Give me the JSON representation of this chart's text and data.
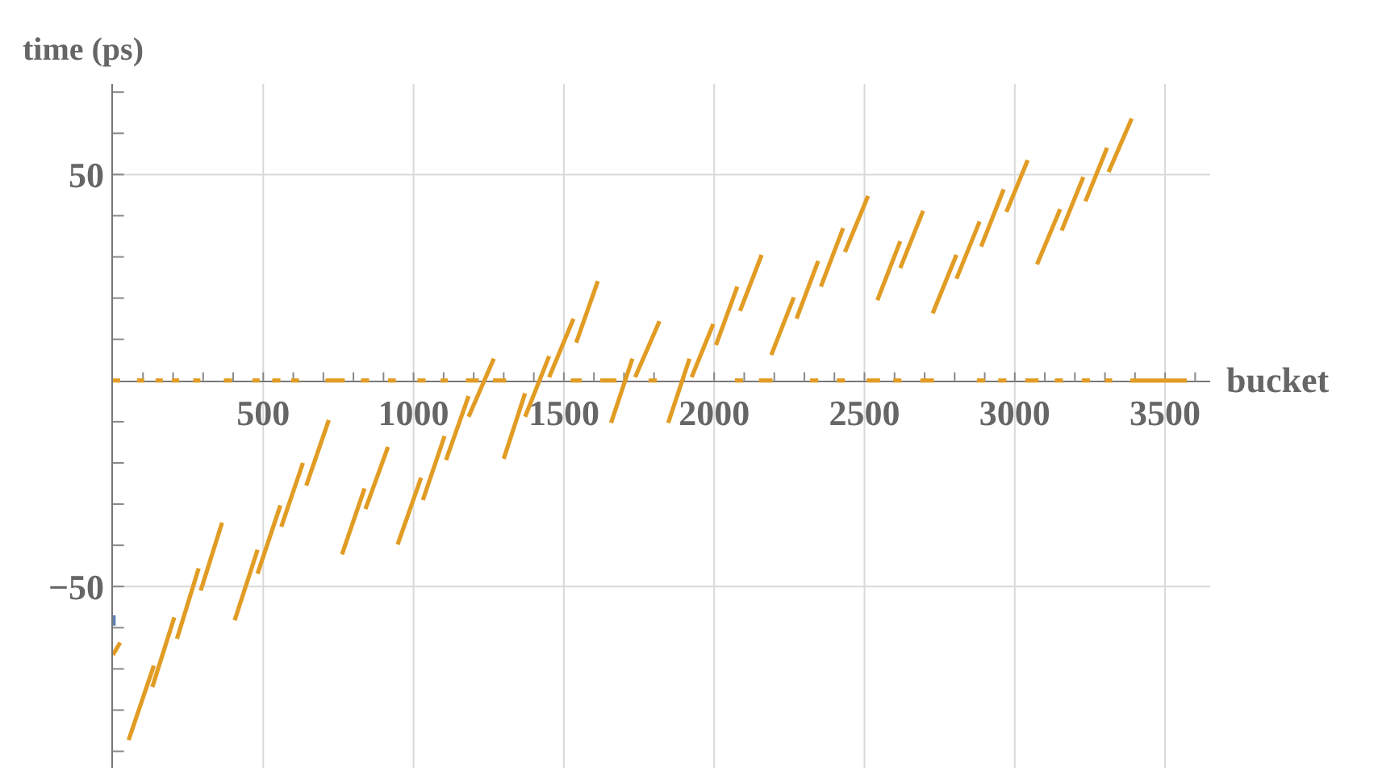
{
  "chart_data": {
    "type": "line",
    "xlabel": "bucket",
    "ylabel": "time (ps)",
    "xlim": [
      0,
      3650
    ],
    "ylim": [
      -94,
      72
    ],
    "xticks": [
      {
        "value": 100,
        "label": null
      },
      {
        "value": 200,
        "label": null
      },
      {
        "value": 300,
        "label": null
      },
      {
        "value": 400,
        "label": null
      },
      500,
      {
        "value": 600,
        "label": null
      },
      {
        "value": 700,
        "label": null
      },
      {
        "value": 800,
        "label": null
      },
      {
        "value": 900,
        "label": null
      },
      1000,
      {
        "value": 1100,
        "label": null
      },
      {
        "value": 1200,
        "label": null
      },
      {
        "value": 1300,
        "label": null
      },
      {
        "value": 1400,
        "label": null
      },
      1500,
      {
        "value": 1600,
        "label": null
      },
      {
        "value": 1700,
        "label": null
      },
      {
        "value": 1800,
        "label": null
      },
      {
        "value": 1900,
        "label": null
      },
      2000,
      {
        "value": 2100,
        "label": null
      },
      {
        "value": 2200,
        "label": null
      },
      {
        "value": 2300,
        "label": null
      },
      {
        "value": 2400,
        "label": null
      },
      2500,
      {
        "value": 2600,
        "label": null
      },
      {
        "value": 2700,
        "label": null
      },
      {
        "value": 2800,
        "label": null
      },
      {
        "value": 2900,
        "label": null
      },
      3000,
      {
        "value": 3100,
        "label": null
      },
      {
        "value": 3200,
        "label": null
      },
      {
        "value": 3300,
        "label": null
      },
      {
        "value": 3400,
        "label": null
      },
      3500,
      {
        "value": 3600,
        "label": null
      }
    ],
    "yticks": [
      {
        "value": -90,
        "label": null
      },
      {
        "value": -80,
        "label": null
      },
      {
        "value": -70,
        "label": null
      },
      {
        "value": -60,
        "label": null
      },
      {
        "value": -50,
        "label": "−50"
      },
      {
        "value": -40,
        "label": null
      },
      {
        "value": -30,
        "label": null
      },
      {
        "value": -20,
        "label": null
      },
      {
        "value": -10,
        "label": null
      },
      {
        "value": 10,
        "label": null
      },
      {
        "value": 20,
        "label": null
      },
      {
        "value": 30,
        "label": null
      },
      {
        "value": 40,
        "label": null
      },
      50,
      {
        "value": 60,
        "label": null
      },
      {
        "value": 70,
        "label": null
      }
    ],
    "grid": true,
    "marker": "none",
    "line_style": "solid",
    "series": [
      {
        "color": "#5e81b5",
        "x": [
          2,
          2
        ],
        "values": [
          -57,
          -59.5
        ]
      },
      {
        "color": "#e19c24",
        "x": [
          0,
          24,
          null,
          52,
          136,
          null,
          131,
          204,
          null,
          213,
          285,
          null,
          292,
          363,
          null,
          405,
          481,
          null,
          481,
          557,
          null,
          560,
          632,
          null,
          643,
          718,
          null,
          762,
          837,
          null,
          840,
          915,
          null,
          947,
          1025,
          null,
          1031,
          1103,
          null,
          1108,
          1183,
          null,
          1183,
          1267,
          null,
          1300,
          1371,
          null,
          1371,
          1451,
          null,
          1451,
          1532,
          null,
          1541,
          1613,
          null,
          1657,
          1728,
          null,
          1737,
          1818,
          null,
          1847,
          1918,
          null,
          1925,
          1997,
          null,
          2006,
          2077,
          null,
          2086,
          2158,
          null,
          2190,
          2265,
          null,
          2274,
          2346,
          null,
          2355,
          2429,
          null,
          2435,
          2512,
          null,
          2543,
          2619,
          null,
          2619,
          2695,
          null,
          2727,
          2806,
          null,
          2806,
          2883,
          null,
          2888,
          2963,
          null,
          2972,
          3043,
          null,
          3074,
          3151,
          null,
          3156,
          3228,
          null,
          3235,
          3307,
          null,
          3312,
          3389
        ],
        "values": [
          -66.6,
          -63.6,
          null,
          -87.3,
          -69.2,
          null,
          -74.4,
          -57.5,
          null,
          -62.7,
          -45.6,
          null,
          -51,
          -34.5,
          null,
          -58.2,
          -41.1,
          null,
          -46.9,
          -30.3,
          null,
          -35.5,
          -20,
          null,
          -25.5,
          -9.6,
          null,
          -42.2,
          -26.2,
          null,
          -31.2,
          -16.1,
          null,
          -39.8,
          -23.6,
          null,
          -29,
          -13.5,
          null,
          -19.3,
          -3.8,
          null,
          -8.8,
          5.3,
          null,
          -19,
          -3.1,
          null,
          -8.8,
          5.9,
          null,
          0.8,
          15,
          null,
          9.2,
          24.1,
          null,
          -10.3,
          5.3,
          null,
          0.8,
          14.4,
          null,
          -10.3,
          5.3,
          null,
          0.8,
          13.7,
          null,
          8.6,
          22.8,
          null,
          16.9,
          30.5,
          null,
          6.2,
          20.2,
          null,
          15,
          29,
          null,
          22.8,
          37,
          null,
          31.2,
          44.8,
          null,
          19.5,
          33.8,
          null,
          27.3,
          41.2,
          null,
          16.3,
          30.5,
          null,
          24.7,
          38.6,
          null,
          32.5,
          46.4,
          null,
          40.9,
          53.5,
          null,
          28.2,
          41.6,
          null,
          36.4,
          49.4,
          null,
          43.5,
          56.5,
          null,
          50.6,
          63.6
        ]
      },
      {
        "color": "#e19c24",
        "x": [
          0,
          24,
          null,
          80,
          104,
          null,
          142,
          166,
          null,
          196,
          220,
          null,
          267,
          291,
          null,
          369,
          396,
          null,
          464,
          488,
          null,
          530,
          557,
          null,
          593,
          619,
          null,
          707,
          771,
          null,
          825,
          852,
          null,
          915,
          941,
          null,
          1013,
          1040,
          null,
          1090,
          1114,
          null,
          1174,
          1217,
          null,
          1264,
          1308,
          null,
          1523,
          1559,
          null,
          1621,
          1675,
          null,
          1782,
          1809,
          null,
          2069,
          2096,
          null,
          2149,
          2194,
          null,
          2319,
          2346,
          null,
          2408,
          2435,
          null,
          2507,
          2552,
          null,
          2596,
          2623,
          null,
          2686,
          2731,
          null,
          2874,
          2901,
          null,
          2945,
          2972,
          null,
          3035,
          3079,
          null,
          3133,
          3160,
          null,
          3223,
          3250,
          null,
          3300,
          3324,
          null,
          3384,
          3572
        ],
        "values": [
          0,
          0,
          null,
          0,
          0,
          null,
          0,
          0,
          null,
          0,
          0,
          null,
          0,
          0,
          null,
          0,
          0,
          null,
          0,
          0,
          null,
          0,
          0,
          null,
          0,
          0,
          null,
          0,
          0,
          null,
          0,
          0,
          null,
          0,
          0,
          null,
          0,
          0,
          null,
          0,
          0,
          null,
          0,
          0,
          null,
          0,
          0,
          null,
          0,
          0,
          null,
          0,
          0,
          null,
          0,
          0,
          null,
          0,
          0,
          null,
          0,
          0,
          null,
          0,
          0,
          null,
          0,
          0,
          null,
          0,
          0,
          null,
          0,
          0,
          null,
          0,
          0,
          null,
          0,
          0,
          null,
          0,
          0,
          null,
          0,
          0,
          null,
          0,
          0,
          null,
          0,
          0,
          null,
          0,
          0,
          null,
          0,
          0
        ]
      }
    ]
  }
}
